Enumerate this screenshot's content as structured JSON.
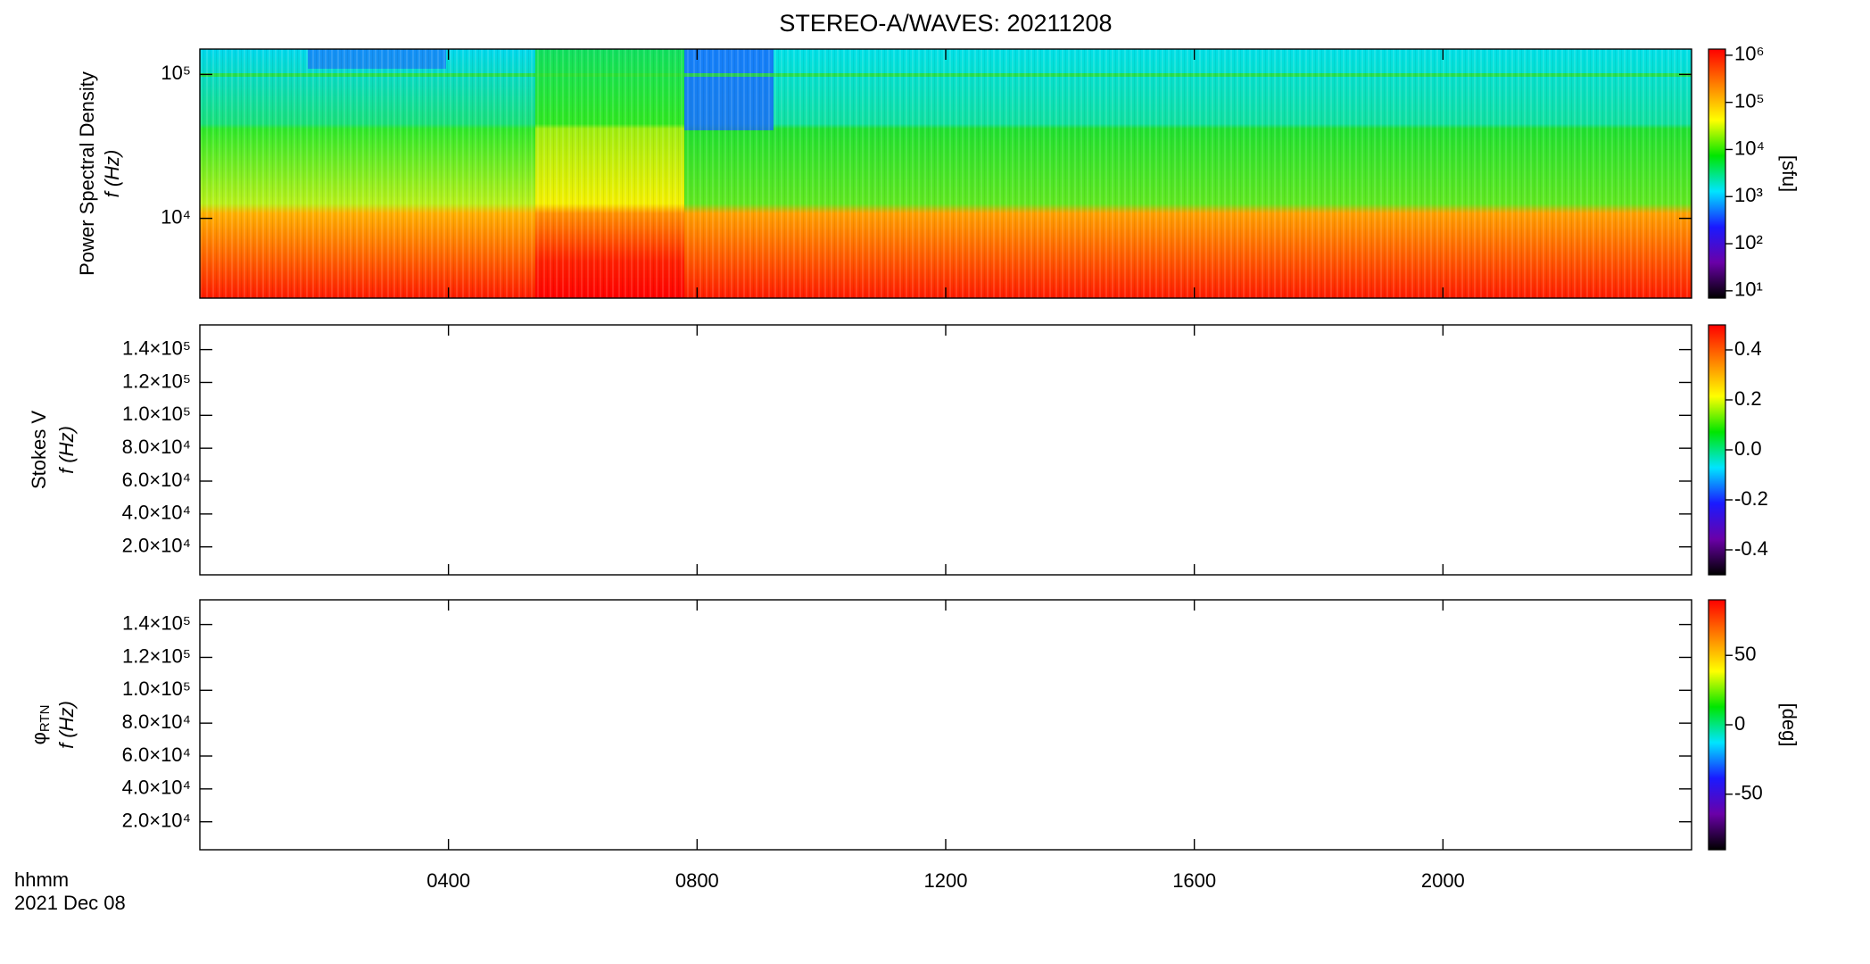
{
  "title": "STEREO-A/WAVES: 20211208",
  "time_label": "hhmm",
  "date_label": "2021 Dec 08",
  "colormap": [
    "#000000",
    "#6a00a8",
    "#1a1aff",
    "#00e5ff",
    "#00e600",
    "#ffff00",
    "#ff8000",
    "#ff0000"
  ],
  "chart_data": [
    {
      "type": "heatmap",
      "ylabel": "Power Spectral Density",
      "ylabel2": "f (Hz)",
      "ylog": true,
      "ylim": [
        2790,
        150000
      ],
      "yticks": [
        {
          "value": 10000,
          "label": "10⁴"
        },
        {
          "value": 100000,
          "label": "10⁵"
        }
      ],
      "clog": true,
      "clim": [
        7,
        1350000
      ],
      "clabel": "[sfu]",
      "cticks": [
        {
          "value": 10,
          "label": "10¹"
        },
        {
          "value": 100,
          "label": "10²"
        },
        {
          "value": 1000,
          "label": "10³"
        },
        {
          "value": 10000,
          "label": "10⁴"
        },
        {
          "value": 100000,
          "label": "10⁵"
        },
        {
          "value": 1000000,
          "label": "10⁶"
        }
      ],
      "xlim": [
        0,
        24
      ]
    },
    {
      "type": "heatmap",
      "ylabel": "Stokes V",
      "ylabel2": "f (Hz)",
      "ylog": false,
      "ylim": [
        3000,
        155000
      ],
      "yticks": [
        {
          "value": 20000,
          "label": "2.0×10⁴"
        },
        {
          "value": 40000,
          "label": "4.0×10⁴"
        },
        {
          "value": 60000,
          "label": "6.0×10⁴"
        },
        {
          "value": 80000,
          "label": "8.0×10⁴"
        },
        {
          "value": 100000,
          "label": "1.0×10⁵"
        },
        {
          "value": 120000,
          "label": "1.2×10⁵"
        },
        {
          "value": 140000,
          "label": "1.4×10⁵"
        }
      ],
      "clog": false,
      "clim": [
        -0.5,
        0.5
      ],
      "cticks": [
        -0.4,
        -0.2,
        {
          "value": 0,
          "label": "0.0"
        },
        0.2,
        0.4
      ],
      "xlim": [
        0,
        24
      ]
    },
    {
      "type": "heatmap",
      "ylabel_symbol": "φ",
      "ylabel_subscript": "RTN",
      "ylabel2": "f (Hz)",
      "ylog": false,
      "ylim": [
        3000,
        155000
      ],
      "yticks": [
        {
          "value": 20000,
          "label": "2.0×10⁴"
        },
        {
          "value": 40000,
          "label": "4.0×10⁴"
        },
        {
          "value": 60000,
          "label": "6.0×10⁴"
        },
        {
          "value": 80000,
          "label": "8.0×10⁴"
        },
        {
          "value": 100000,
          "label": "1.0×10⁵"
        },
        {
          "value": 120000,
          "label": "1.2×10⁵"
        },
        {
          "value": 140000,
          "label": "1.4×10⁵"
        }
      ],
      "clog": false,
      "clim": [
        -90,
        90
      ],
      "clabel": "[deg]",
      "cticks": [
        -50,
        0,
        50
      ],
      "xlim": [
        0,
        24
      ],
      "xticks": [
        {
          "value": 4,
          "label": "0400"
        },
        {
          "value": 8,
          "label": "0800"
        },
        {
          "value": 12,
          "label": "1200"
        },
        {
          "value": 16,
          "label": "1600"
        },
        {
          "value": 20,
          "label": "2000"
        }
      ]
    }
  ]
}
